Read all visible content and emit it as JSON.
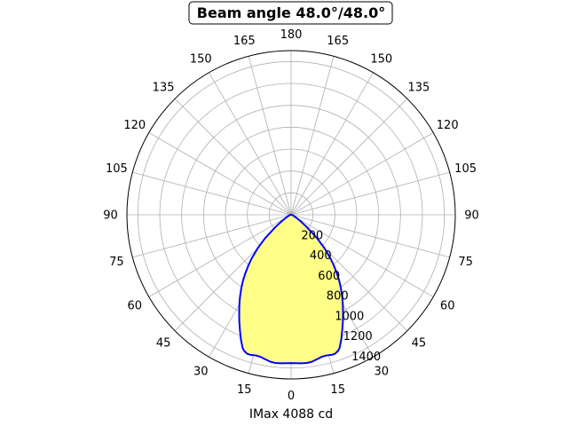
{
  "chart_data": {
    "type": "line",
    "projection": "polar",
    "title": "Beam angle 48.0°/48.0°",
    "xlabel": "IMax 4088 cd",
    "angle_ticks": [
      {
        "deg": 0,
        "label": "0"
      },
      {
        "deg": 15,
        "label": "15"
      },
      {
        "deg": 30,
        "label": "30"
      },
      {
        "deg": 45,
        "label": "45"
      },
      {
        "deg": 60,
        "label": "60"
      },
      {
        "deg": 75,
        "label": "75"
      },
      {
        "deg": 90,
        "label": "90"
      },
      {
        "deg": 105,
        "label": "105"
      },
      {
        "deg": 120,
        "label": "120"
      },
      {
        "deg": 135,
        "label": "135"
      },
      {
        "deg": 150,
        "label": "150"
      },
      {
        "deg": 165,
        "label": "165"
      },
      {
        "deg": 180,
        "label": "180"
      },
      {
        "deg": -165,
        "label": "165"
      },
      {
        "deg": -150,
        "label": "150"
      },
      {
        "deg": -135,
        "label": "135"
      },
      {
        "deg": -120,
        "label": "120"
      },
      {
        "deg": -105,
        "label": "105"
      },
      {
        "deg": -90,
        "label": "90"
      },
      {
        "deg": -75,
        "label": "75"
      },
      {
        "deg": -60,
        "label": "60"
      },
      {
        "deg": -45,
        "label": "45"
      },
      {
        "deg": -30,
        "label": "30"
      },
      {
        "deg": -15,
        "label": "15"
      }
    ],
    "radial_ticks": [
      200,
      400,
      600,
      800,
      1000,
      1200,
      1400
    ],
    "rlim": [
      0,
      1500
    ],
    "grid": true,
    "series": [
      {
        "color": "#0000ff",
        "fill": "#ffff88",
        "angles": [
          0,
          2,
          4,
          6,
          8,
          10,
          12,
          14,
          16,
          17.5,
          19,
          20,
          22,
          24,
          26,
          28,
          30,
          32,
          34,
          36,
          38,
          40,
          42,
          45,
          48,
          52,
          56,
          60,
          70,
          80,
          90
        ],
        "values": [
          1355,
          1357,
          1360,
          1362,
          1356,
          1342,
          1328,
          1325,
          1332,
          1332,
          1315,
          1295,
          1225,
          1150,
          1080,
          1010,
          945,
          880,
          815,
          750,
          680,
          610,
          540,
          430,
          320,
          180,
          100,
          55,
          20,
          5,
          0
        ],
        "symmetric": true
      }
    ]
  }
}
